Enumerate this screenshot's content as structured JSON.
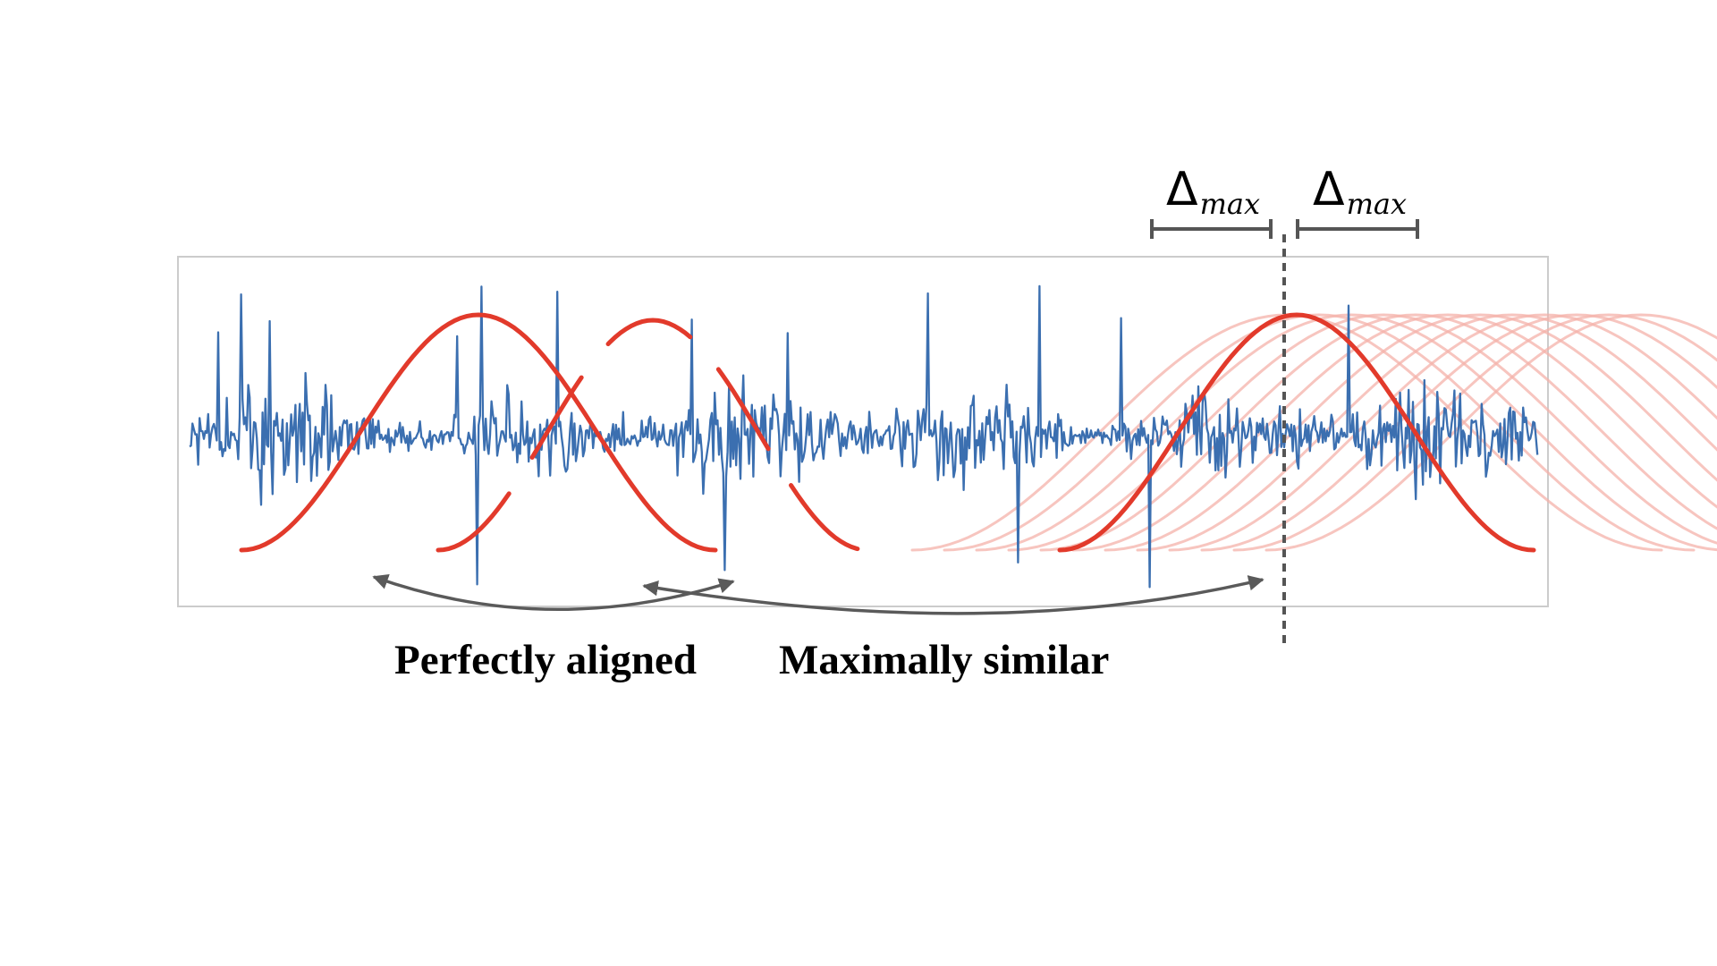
{
  "captions": {
    "perfectly_aligned": "Perfectly aligned",
    "maximally_similar": "Maximally similar"
  },
  "delta_labels": {
    "symbol": "Δ",
    "subscript": "max"
  },
  "colors": {
    "signal": "#3b6fb0",
    "template": "#e23a2b",
    "template_faded": "#f4b1aa",
    "arrows": "#5a5a5a",
    "bracket": "#555555",
    "frame": "#cccccc"
  },
  "icons": [
    "double-headed-arrow",
    "dimension-bracket"
  ]
}
